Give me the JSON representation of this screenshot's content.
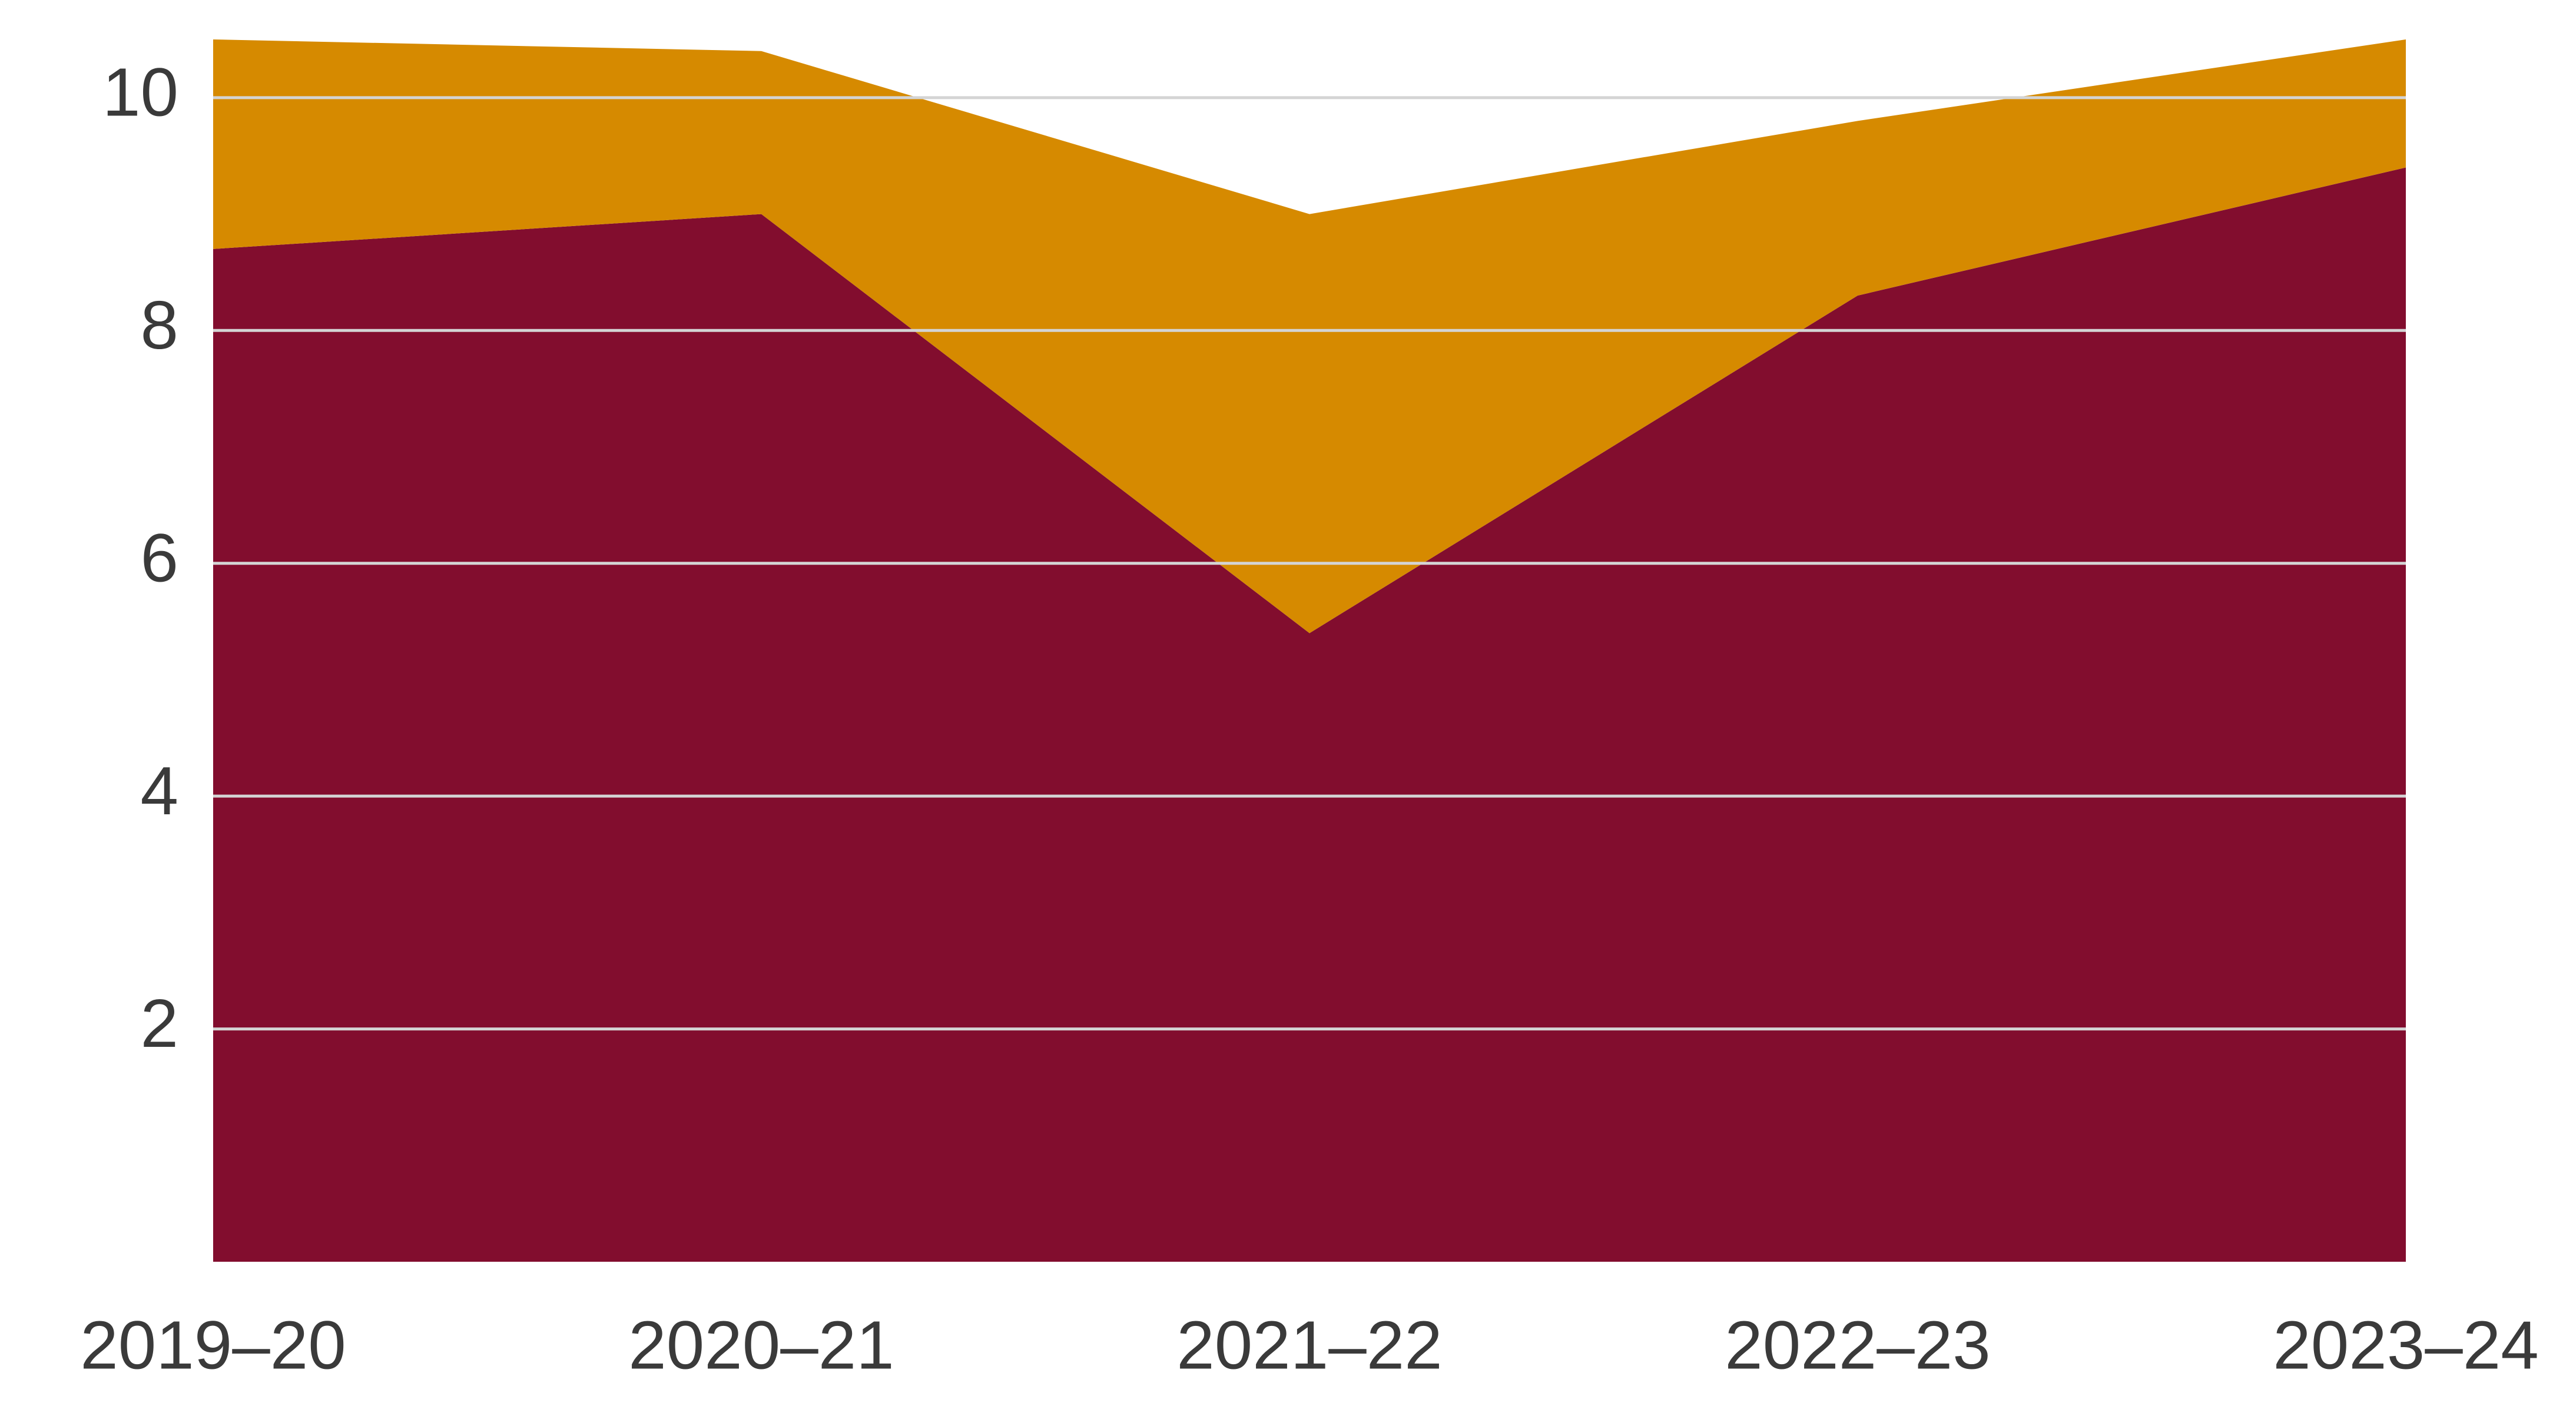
{
  "chart_data": {
    "type": "stacked_area",
    "categories": [
      "2019–20",
      "2020–21",
      "2021–22",
      "2022–23",
      "2023–24"
    ],
    "series": [
      {
        "color": "#820d2e",
        "values": [
          8.7,
          9.0,
          5.4,
          8.3,
          9.4
        ]
      },
      {
        "color": "#d68a00",
        "values": [
          1.8,
          1.4,
          3.6,
          1.5,
          1.1
        ]
      }
    ],
    "ylim": [
      0,
      10.5
    ],
    "yticks": [
      2,
      4,
      6,
      8,
      10
    ],
    "grid": true
  }
}
